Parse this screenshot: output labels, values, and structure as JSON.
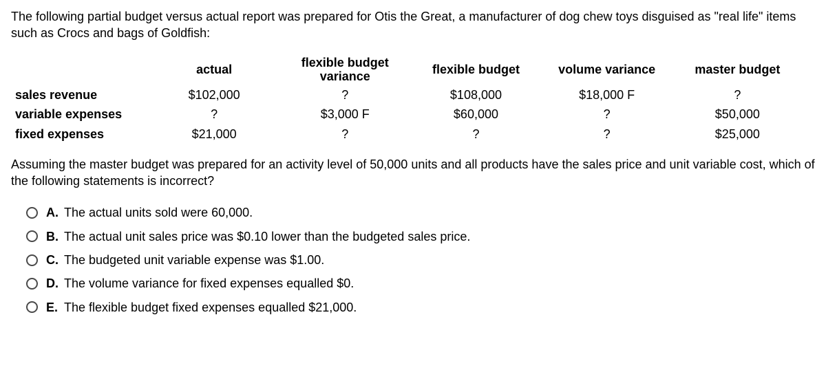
{
  "intro": "The following partial budget versus actual report was prepared for Otis the Great, a manufacturer of dog chew toys disguised as \"real life\" items such as Crocs and bags of Goldfish:",
  "table": {
    "headers": {
      "actual": "actual",
      "flex_var_line1": "flexible budget",
      "flex_var_line2": "variance",
      "flex_budget": "flexible budget",
      "vol_var": "volume variance",
      "master": "master budget"
    },
    "rows": [
      {
        "label": "sales revenue",
        "actual": "$102,000",
        "flex_var": "?",
        "flex_budget": "$108,000",
        "vol_var": "$18,000 F",
        "master": "?"
      },
      {
        "label": "variable expenses",
        "actual": "?",
        "flex_var": "$3,000 F",
        "flex_budget": "$60,000",
        "vol_var": "?",
        "master": "$50,000"
      },
      {
        "label": "fixed expenses",
        "actual": "$21,000",
        "flex_var": "?",
        "flex_budget": "?",
        "vol_var": "?",
        "master": "$25,000"
      }
    ]
  },
  "followup": "Assuming the master budget was prepared for an activity level of 50,000 units and all products have the sales price and unit variable cost, which of the following statements is incorrect?",
  "options": [
    {
      "letter": "A.",
      "text": "The actual units sold were 60,000."
    },
    {
      "letter": "B.",
      "text": "The actual unit sales price was $0.10 lower than the budgeted sales price."
    },
    {
      "letter": "C.",
      "text": "The budgeted unit variable expense was $1.00."
    },
    {
      "letter": "D.",
      "text": "The volume variance for fixed expenses equalled $0."
    },
    {
      "letter": "E.",
      "text": "The flexible budget fixed expenses equalled $21,000."
    }
  ]
}
